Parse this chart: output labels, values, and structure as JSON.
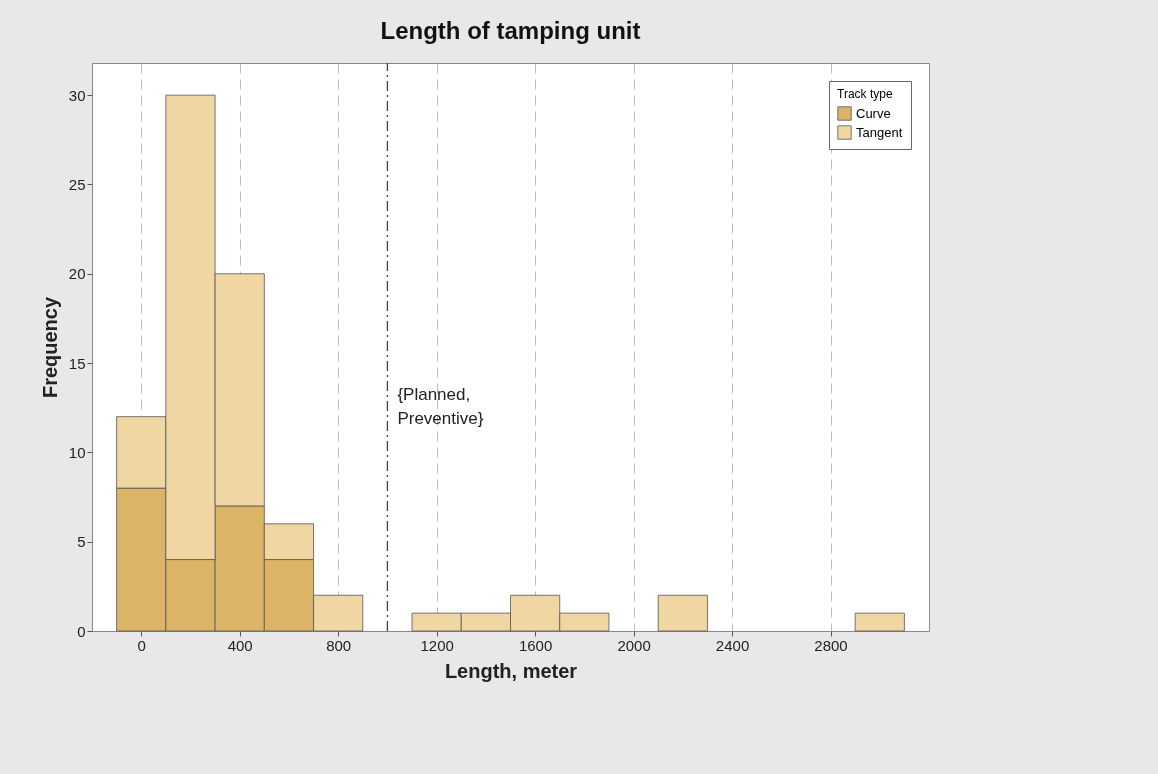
{
  "chart_data": {
    "type": "bar",
    "title": "Length of tamping unit",
    "xlabel": "Length, meter",
    "ylabel": "Frequency",
    "legend_title": "Track type",
    "stacked": true,
    "x": [
      0,
      200,
      400,
      600,
      800,
      1000,
      1200,
      1400,
      1600,
      1800,
      2000,
      2200,
      2400,
      2600,
      2800,
      3000
    ],
    "series": [
      {
        "name": "Curve",
        "color": "#dcb468",
        "values": [
          8,
          4,
          7,
          4,
          0,
          0,
          0,
          0,
          0,
          0,
          0,
          0,
          0,
          0,
          0,
          0
        ]
      },
      {
        "name": "Tangent",
        "color": "#f0d6a2",
        "values": [
          4,
          26,
          13,
          2,
          2,
          0,
          1,
          1,
          2,
          1,
          0,
          2,
          0,
          0,
          0,
          1
        ]
      }
    ],
    "xlim": [
      -200,
      3200
    ],
    "xticks": [
      0,
      400,
      800,
      1200,
      1600,
      2000,
      2400,
      2800
    ],
    "ylim": [
      0,
      31.8
    ],
    "yticks": [
      0,
      5,
      10,
      15,
      20,
      25,
      30
    ],
    "grid": "x",
    "legend": "top right",
    "ref_lines": [
      {
        "axis": "x",
        "value": 1000,
        "label": "{Planned, Preventive}",
        "line_style": "dashdot"
      }
    ]
  }
}
